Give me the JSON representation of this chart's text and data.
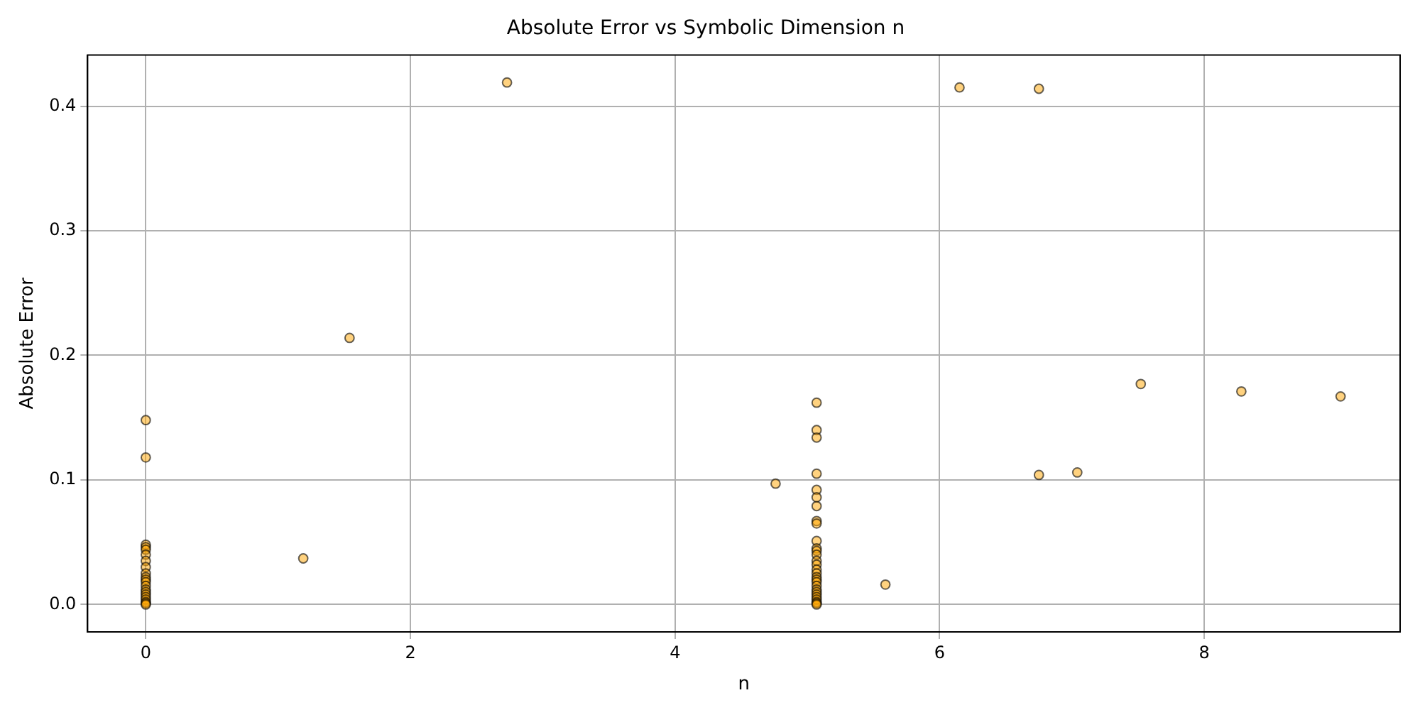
{
  "chart_data": {
    "type": "scatter",
    "title": "Absolute Error vs Symbolic Dimension n",
    "xlabel": "n",
    "ylabel": "Absolute Error",
    "xlim": [
      -0.44,
      9.48
    ],
    "xticks": [
      0,
      2,
      4,
      6,
      8
    ],
    "ylim": [
      -0.022,
      0.441
    ],
    "yticks": [
      {
        "value": 0,
        "label": "0.0"
      },
      0.1,
      0.2,
      0.3,
      0.4
    ],
    "grid": true,
    "legend": false,
    "marker": "circle",
    "series": [
      {
        "color": "#ffa500",
        "x": [
          0,
          0,
          0,
          0,
          0,
          0,
          0,
          0,
          0,
          0,
          0,
          0,
          0,
          0,
          0,
          0,
          0,
          0,
          0,
          0,
          0,
          5.07,
          5.07,
          5.07,
          5.07,
          5.07,
          5.07,
          5.07,
          5.07,
          5.07,
          5.07,
          5.07,
          5.07,
          5.07,
          5.07,
          5.07,
          5.07,
          5.07,
          5.07,
          5.07,
          5.07,
          5.07,
          5.07,
          5.07,
          5.07,
          5.07,
          5.07,
          5.07,
          5.07,
          5.07,
          1.19,
          1.54,
          2.73,
          4.76,
          5.59,
          6.15,
          6.75,
          6.75,
          7.04,
          7.52,
          8.28,
          9.03
        ],
        "values": [
          0.148,
          0.118,
          0.048,
          0.046,
          0.044,
          0.04,
          0.035,
          0.03,
          0.025,
          0.022,
          0.02,
          0.018,
          0.015,
          0.012,
          0.01,
          0.008,
          0.006,
          0.004,
          0.002,
          0.001,
          0,
          0.162,
          0.14,
          0.134,
          0.105,
          0.092,
          0.086,
          0.079,
          0.067,
          0.065,
          0.051,
          0.045,
          0.043,
          0.04,
          0.035,
          0.032,
          0.028,
          0.025,
          0.022,
          0.02,
          0.018,
          0.015,
          0.012,
          0.01,
          0.008,
          0.006,
          0.004,
          0.002,
          0.001,
          0,
          0.037,
          0.214,
          0.419,
          0.097,
          0.016,
          0.415,
          0.414,
          0.104,
          0.106,
          0.177,
          0.171,
          0.167
        ]
      }
    ]
  }
}
